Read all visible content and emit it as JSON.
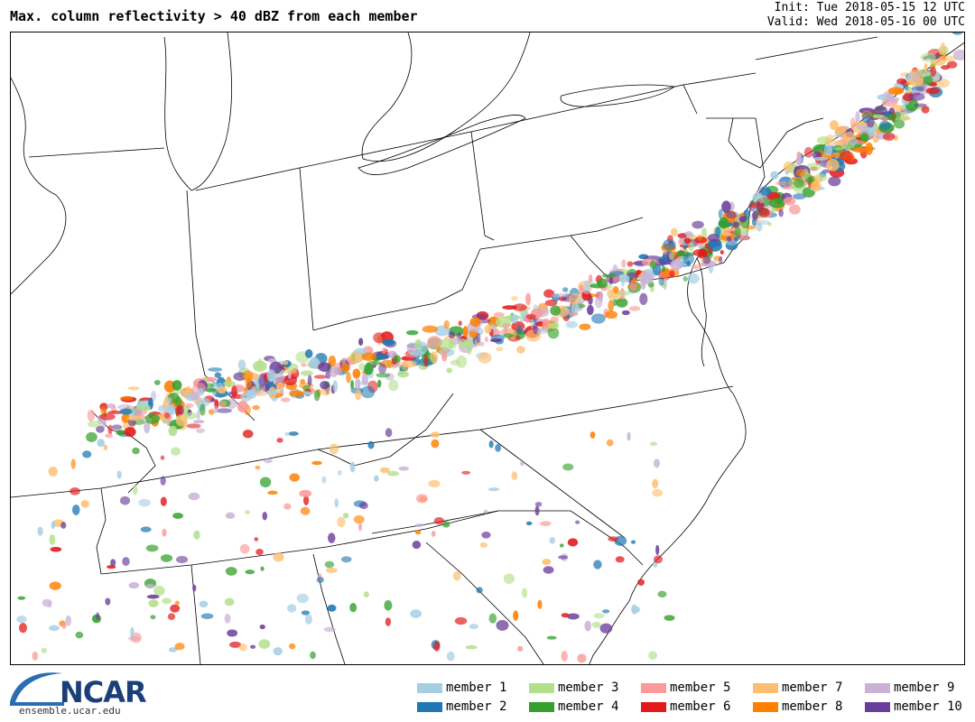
{
  "title": "Max. column reflectivity > 40 dBZ from each member",
  "init": "Init: Tue 2018-05-15 12 UTC",
  "valid": "Valid: Wed 2018-05-16 00 UTC",
  "logo": {
    "name": "NCAR",
    "url_text": "ensemble.ucar.edu"
  },
  "legend": [
    {
      "label": "member 1",
      "color": "#a6cee3"
    },
    {
      "label": "member 2",
      "color": "#1f78b4"
    },
    {
      "label": "member 3",
      "color": "#b2df8a"
    },
    {
      "label": "member 4",
      "color": "#33a02c"
    },
    {
      "label": "member 5",
      "color": "#fb9a99"
    },
    {
      "label": "member 6",
      "color": "#e31a1c"
    },
    {
      "label": "member 7",
      "color": "#fdbf6f"
    },
    {
      "label": "member 8",
      "color": "#ff7f00"
    },
    {
      "label": "member 9",
      "color": "#cab2d6"
    },
    {
      "label": "member 10",
      "color": "#6a3d9a"
    }
  ]
}
